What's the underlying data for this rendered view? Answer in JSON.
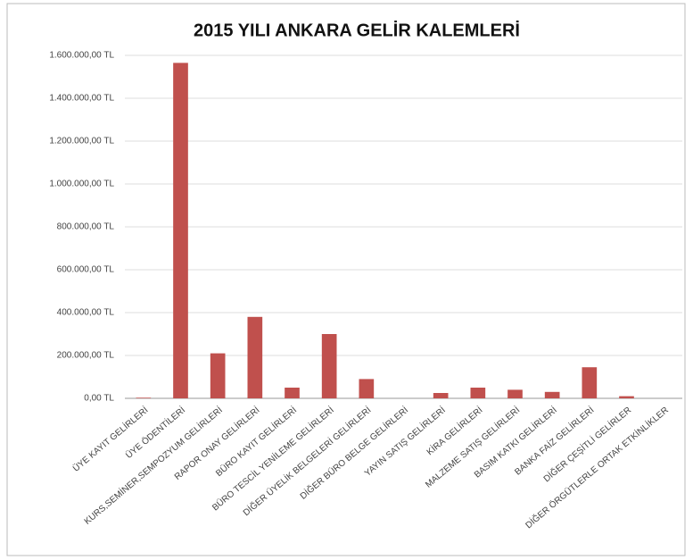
{
  "chart_data": {
    "type": "bar",
    "title": "2015 YILI ANKARA GELİR KALEMLERİ",
    "categories": [
      "ÜYE KAYIT GELİRLERİ",
      "ÜYE ÖDENTİLERİ",
      "KURS,SEMİNER,SEMPOZYUM GELİRLERİ",
      "RAPOR ONAY GELİRLERİ",
      "BÜRO KAYIT GELİRLERİ",
      "BÜRO TESCİL YENİLEME GELİRLERİ",
      "DİĞER ÜYELİK BELGELERİ GELİRLERİ",
      "DİĞER BÜRO BELGE GELİRLERİ",
      "YAYIN SATIŞ GELİRLERİ",
      "KİRA GELİRLERİ",
      "MALZEME SATIŞ GELİRLERİ",
      "BASIM KATKI GELİRLERİ",
      "BANKA FAİZ GELİRLERİ",
      "DİĞER ÇEŞİTLİ GELİRLER",
      "DİĞER ÖRGÜTLERLE ORTAK ETKİNLİKLER"
    ],
    "values": [
      3000,
      1565000,
      210000,
      380000,
      50000,
      300000,
      90000,
      0,
      25000,
      50000,
      40000,
      30000,
      145000,
      10000,
      0
    ],
    "color": "#c0504d",
    "ylim": [
      0,
      1600000
    ],
    "yticks": [
      {
        "value": 0,
        "label": "0,00 TL"
      },
      {
        "value": 200000,
        "label": "200.000,00 TL"
      },
      {
        "value": 400000,
        "label": "400.000,00 TL"
      },
      {
        "value": 600000,
        "label": "600.000,00 TL"
      },
      {
        "value": 800000,
        "label": "800.000,00 TL"
      },
      {
        "value": 1000000,
        "label": "1.000.000,00 TL"
      },
      {
        "value": 1200000,
        "label": "1.200.000,00 TL"
      },
      {
        "value": 1400000,
        "label": "1.400.000,00 TL"
      },
      {
        "value": 1600000,
        "label": "1.600.000,00 TL"
      }
    ],
    "grid": true
  }
}
